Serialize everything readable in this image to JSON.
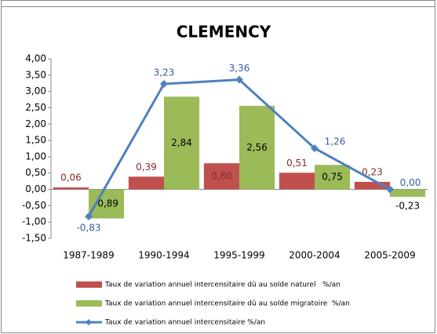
{
  "chart_data": {
    "type": "bar_line",
    "title": "CLEMENCY",
    "categories": [
      "1987-1989",
      "1990-1994",
      "1995-1999",
      "2000-2004",
      "2005-2009"
    ],
    "series": [
      {
        "name": "Taux de variation annuel intercensitaire dû au solde naturel   %/an",
        "type": "bar",
        "color": "#c0504d",
        "label_color": "#8b2a2a",
        "values": [
          0.06,
          0.39,
          0.8,
          0.51,
          0.23
        ],
        "value_labels": [
          "0,06",
          "0,39",
          "0,80",
          "0,51",
          "0,23"
        ]
      },
      {
        "name": "Taux de variation annuel intercensitaire dû au solde migratoire  %/an",
        "type": "bar",
        "color": "#9bbb59",
        "label_color": "#000000",
        "values": [
          -0.89,
          2.84,
          2.56,
          0.75,
          -0.23
        ],
        "value_labels": [
          "-0,89",
          "2,84",
          "2,56",
          "0,75",
          "-0,23"
        ]
      },
      {
        "name": "Taux de variation annuel intercensitaire %/an",
        "type": "line",
        "color": "#4f81bd",
        "label_color": "#2f5f9f",
        "values": [
          -0.83,
          3.23,
          3.36,
          1.26,
          0.0
        ],
        "value_labels": [
          "-0,83",
          "3,23",
          "3,36",
          "1,26",
          "0,00"
        ]
      }
    ],
    "ylim": [
      -1.5,
      4.0
    ],
    "yticks": [
      {
        "value": 4.0,
        "label": "4,00"
      },
      {
        "value": 3.5,
        "label": "3,50"
      },
      {
        "value": 3.0,
        "label": "3,00"
      },
      {
        "value": 2.5,
        "label": "2,50"
      },
      {
        "value": 2.0,
        "label": "2,00"
      },
      {
        "value": 1.5,
        "label": "1,50"
      },
      {
        "value": 1.0,
        "label": "1,00"
      },
      {
        "value": 0.5,
        "label": "0,50"
      },
      {
        "value": 0.0,
        "label": "0,00"
      },
      {
        "value": -0.5,
        "label": "-0,50"
      },
      {
        "value": -1.0,
        "label": "-1,00"
      },
      {
        "value": -1.5,
        "label": "-1,50"
      }
    ],
    "grid": false
  }
}
